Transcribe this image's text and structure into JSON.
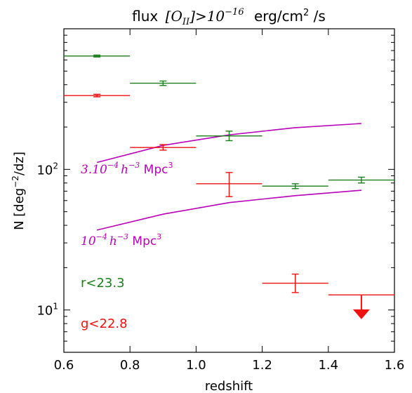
{
  "chart_data": {
    "type": "scatter",
    "title": {
      "prefix": "flux",
      "symbol": "O",
      "subscript": "II",
      "relation": ">10",
      "exponent": "−16",
      "units": "erg/cm",
      "units_sup": "2",
      "units_tail": " /s"
    },
    "xlabel": "redshift",
    "ylabel": "N [deg",
    "ylabel_sup": "−2",
    "ylabel_tail": "/dz]",
    "xlim": [
      0.6,
      1.6
    ],
    "ylim": [
      5,
      1000
    ],
    "yscale": "log",
    "xticks": [
      0.6,
      0.8,
      1.0,
      1.2,
      1.4,
      1.6
    ],
    "xtick_labels": [
      "0.6",
      "0.8",
      "1.0",
      "1.2",
      "1.4",
      "1.6"
    ],
    "yticks": [
      10,
      100
    ],
    "ytick_labels": [
      {
        "base": "10",
        "exp": "1"
      },
      {
        "base": "10",
        "exp": "2"
      }
    ],
    "colors": {
      "green": "#1a7f1a",
      "red": "#f01010",
      "magenta": "#b800b8"
    },
    "series": [
      {
        "name": "r<23.3",
        "color": "green",
        "points": [
          {
            "x": 0.7,
            "xerr": [
              0.6,
              0.8
            ],
            "y": 640,
            "yerr": [
              630,
              650
            ]
          },
          {
            "x": 0.9,
            "xerr": [
              0.8,
              1.0
            ],
            "y": 410,
            "yerr": [
              395,
              425
            ]
          },
          {
            "x": 1.1,
            "xerr": [
              1.0,
              1.2
            ],
            "y": 173,
            "yerr": [
              160,
              187
            ]
          },
          {
            "x": 1.3,
            "xerr": [
              1.2,
              1.4
            ],
            "y": 76,
            "yerr": [
              73,
              79
            ]
          },
          {
            "x": 1.5,
            "xerr": [
              1.4,
              1.6
            ],
            "y": 84,
            "yerr": [
              80,
              88
            ]
          }
        ]
      },
      {
        "name": "g<22.8",
        "color": "red",
        "points": [
          {
            "x": 0.7,
            "xerr": [
              0.6,
              0.8
            ],
            "y": 335,
            "yerr": [
              328,
              342
            ]
          },
          {
            "x": 0.9,
            "xerr": [
              0.8,
              1.0
            ],
            "y": 143,
            "yerr": [
              137,
              150
            ]
          },
          {
            "x": 1.1,
            "xerr": [
              1.0,
              1.2
            ],
            "y": 79,
            "yerr": [
              64,
              95
            ]
          },
          {
            "x": 1.3,
            "xerr": [
              1.2,
              1.4
            ],
            "y": 15.5,
            "yerr": [
              13.3,
              18
            ]
          },
          {
            "x": 1.5,
            "xerr": [
              1.4,
              1.6
            ],
            "y": 12.8,
            "upper_limit": true
          }
        ]
      }
    ],
    "curves": [
      {
        "label": "3.10",
        "label_sup": "−4",
        "label_h": "h",
        "label_h_sup": "−3",
        "label_tail": " Mpc",
        "label_tail_sup": "3",
        "color": "magenta",
        "x": [
          0.7,
          0.9,
          1.1,
          1.3,
          1.5
        ],
        "y": [
          112,
          148,
          176,
          198,
          212
        ]
      },
      {
        "label": "10",
        "label_sup": "−4",
        "label_h": "h",
        "label_h_sup": "−3",
        "label_tail": " Mpc",
        "label_tail_sup": "3",
        "color": "magenta",
        "x": [
          0.7,
          0.9,
          1.1,
          1.3,
          1.5
        ],
        "y": [
          37,
          48,
          58,
          65,
          71
        ]
      }
    ]
  }
}
